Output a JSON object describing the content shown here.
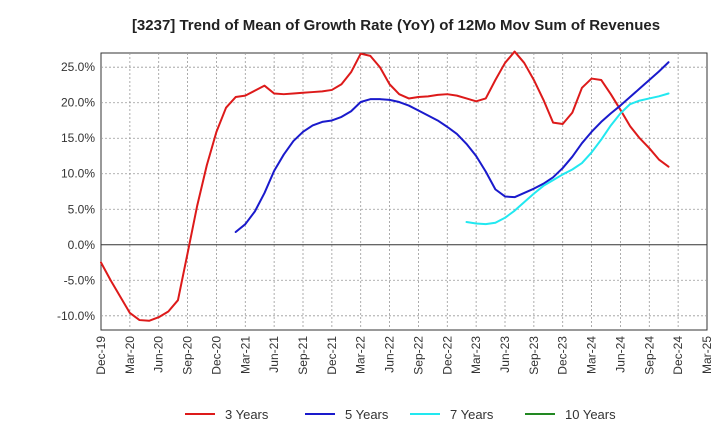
{
  "chart_data": {
    "type": "line",
    "title": "[3237]  Trend of Mean of Growth Rate (YoY) of 12Mo Mov Sum of Revenues",
    "xlabel": "",
    "ylabel": "",
    "ylim": [
      -12,
      27
    ],
    "yticks": [
      -10,
      -5,
      0,
      5,
      10,
      15,
      20,
      25
    ],
    "ytick_labels": [
      "-10.0%",
      "-5.0%",
      "0.0%",
      "5.0%",
      "10.0%",
      "15.0%",
      "20.0%",
      "25.0%"
    ],
    "x_tick_labels": [
      "Dec-19",
      "Mar-20",
      "Jun-20",
      "Sep-20",
      "Dec-20",
      "Mar-21",
      "Jun-21",
      "Sep-21",
      "Dec-21",
      "Mar-22",
      "Jun-22",
      "Sep-22",
      "Dec-22",
      "Mar-23",
      "Jun-23",
      "Sep-23",
      "Dec-23",
      "Mar-24",
      "Jun-24",
      "Sep-24",
      "Dec-24",
      "Mar-25"
    ],
    "x_start": "Dec-19",
    "grid": true,
    "legend_position": "bottom",
    "series": [
      {
        "name": "3 Years",
        "color": "#dd1a1a",
        "start_index": 0,
        "values": [
          -2.5,
          -5.0,
          -7.3,
          -9.6,
          -10.6,
          -10.7,
          -10.2,
          -9.4,
          -7.8,
          -1.2,
          5.5,
          11.2,
          15.9,
          19.3,
          20.8,
          21.0,
          21.7,
          22.4,
          21.3,
          21.2,
          21.3,
          21.4,
          21.5,
          21.6,
          21.8,
          22.6,
          24.3,
          26.9,
          26.6,
          25.0,
          22.6,
          21.2,
          20.6,
          20.8,
          20.9,
          21.1,
          21.2,
          21.0,
          20.6,
          20.2,
          20.6,
          23.2,
          25.6,
          27.2,
          25.6,
          23.2,
          20.4,
          17.2,
          17.0,
          18.6,
          22.1,
          23.4,
          23.2,
          21.2,
          19.0,
          16.7,
          15.0,
          13.6,
          12.0,
          11.0
        ]
      },
      {
        "name": "5 Years",
        "color": "#1a1acc",
        "start_index": 14,
        "values": [
          1.8,
          2.9,
          4.7,
          7.3,
          10.4,
          12.7,
          14.6,
          15.9,
          16.8,
          17.3,
          17.5,
          18.0,
          18.8,
          20.1,
          20.5,
          20.5,
          20.4,
          20.1,
          19.6,
          18.9,
          18.2,
          17.5,
          16.6,
          15.6,
          14.2,
          12.5,
          10.3,
          7.8,
          6.8,
          6.7,
          7.3,
          7.9,
          8.6,
          9.5,
          10.8,
          12.4,
          14.3,
          15.9,
          17.3,
          18.5,
          19.6,
          20.8,
          22.0,
          23.2,
          24.4,
          25.7
        ]
      },
      {
        "name": "7 Years",
        "color": "#22e8f0",
        "start_index": 38,
        "values": [
          3.2,
          3.0,
          2.9,
          3.1,
          3.8,
          4.8,
          6.0,
          7.2,
          8.3,
          9.1,
          9.9,
          10.6,
          11.5,
          13.0,
          14.8,
          16.8,
          18.5,
          19.8,
          20.3,
          20.6,
          20.9,
          21.3
        ]
      },
      {
        "name": "10 Years",
        "color": "#228822",
        "start_index": 0,
        "values": []
      }
    ]
  }
}
